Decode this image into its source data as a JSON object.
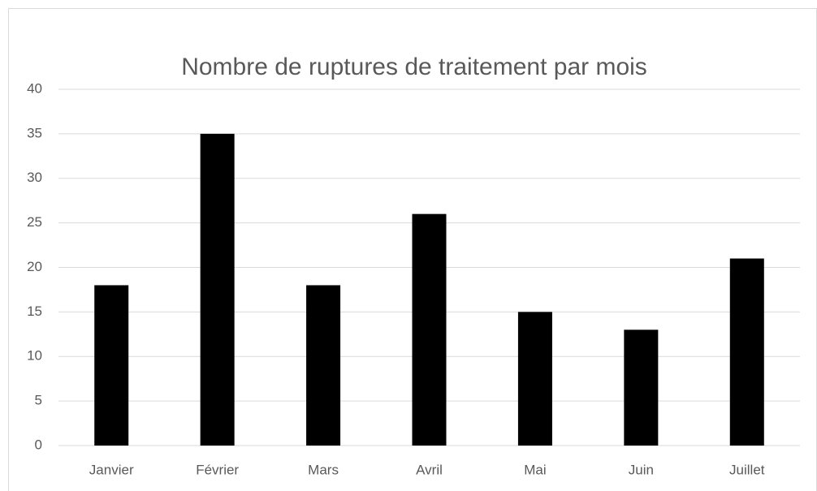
{
  "chart_data": {
    "type": "bar",
    "title": "Nombre de ruptures de traitement par mois",
    "categories": [
      "Janvier",
      "Février",
      "Mars",
      "Avril",
      "Mai",
      "Juin",
      "Juillet"
    ],
    "values": [
      18,
      35,
      18,
      26,
      15,
      13,
      21
    ],
    "color": "#000000",
    "ylim": [
      0,
      40
    ],
    "yticks": [
      0,
      5,
      10,
      15,
      20,
      25,
      30,
      35,
      40
    ],
    "grid": true
  }
}
